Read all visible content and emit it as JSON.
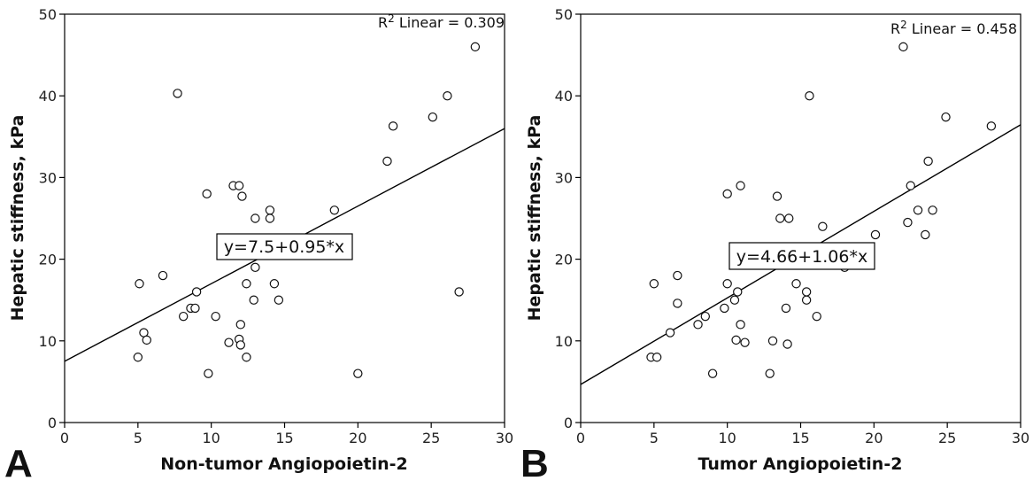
{
  "chart_data": [
    {
      "type": "scatter",
      "panel_label": "A",
      "xlabel": "Non-tumor Angiopoietin-2",
      "ylabel": "Hepatic stiffness, kPa",
      "xlim": [
        0,
        30
      ],
      "ylim": [
        0,
        50
      ],
      "x_ticks": [
        "0",
        "5",
        "10",
        "15",
        "20",
        "25",
        "30"
      ],
      "y_ticks": [
        "0",
        "10",
        "20",
        "30",
        "40",
        "50"
      ],
      "r2_prefix": "R",
      "r2_sup": "2",
      "r2_text": " Linear = 0.309",
      "equation": "y=7.5+0.95*x",
      "fit": {
        "intercept": 7.5,
        "slope": 0.95
      },
      "grid": false,
      "points": [
        {
          "x": 5.0,
          "y": 8.0
        },
        {
          "x": 5.1,
          "y": 17.0
        },
        {
          "x": 5.4,
          "y": 11.0
        },
        {
          "x": 5.6,
          "y": 10.1
        },
        {
          "x": 6.7,
          "y": 18.0
        },
        {
          "x": 7.7,
          "y": 40.3
        },
        {
          "x": 8.1,
          "y": 13.0
        },
        {
          "x": 8.6,
          "y": 14.0
        },
        {
          "x": 8.9,
          "y": 14.0
        },
        {
          "x": 9.0,
          "y": 16.0
        },
        {
          "x": 9.7,
          "y": 28.0
        },
        {
          "x": 9.8,
          "y": 6.0
        },
        {
          "x": 10.3,
          "y": 13.0
        },
        {
          "x": 11.2,
          "y": 9.8
        },
        {
          "x": 11.5,
          "y": 29.0
        },
        {
          "x": 11.9,
          "y": 29.0
        },
        {
          "x": 11.9,
          "y": 10.2
        },
        {
          "x": 12.0,
          "y": 12.0
        },
        {
          "x": 12.0,
          "y": 9.5
        },
        {
          "x": 12.1,
          "y": 27.7
        },
        {
          "x": 12.4,
          "y": 17.0
        },
        {
          "x": 12.4,
          "y": 8.0
        },
        {
          "x": 12.9,
          "y": 15.0
        },
        {
          "x": 13.0,
          "y": 19.0
        },
        {
          "x": 13.0,
          "y": 25.0
        },
        {
          "x": 14.0,
          "y": 26.0
        },
        {
          "x": 14.0,
          "y": 25.0
        },
        {
          "x": 14.3,
          "y": 17.0
        },
        {
          "x": 14.6,
          "y": 15.0
        },
        {
          "x": 18.4,
          "y": 26.0
        },
        {
          "x": 20.0,
          "y": 6.0
        },
        {
          "x": 22.0,
          "y": 32.0
        },
        {
          "x": 22.4,
          "y": 36.3
        },
        {
          "x": 25.1,
          "y": 37.4
        },
        {
          "x": 26.1,
          "y": 40.0
        },
        {
          "x": 26.9,
          "y": 16.0
        },
        {
          "x": 28.0,
          "y": 46.0
        }
      ]
    },
    {
      "type": "scatter",
      "panel_label": "B",
      "xlabel": "Tumor Angiopoietin-2",
      "ylabel": "Hepatic stiffness, kPa",
      "xlim": [
        0,
        30
      ],
      "ylim": [
        0,
        50
      ],
      "x_ticks": [
        "0",
        "5",
        "10",
        "15",
        "20",
        "25",
        "30"
      ],
      "y_ticks": [
        "0",
        "10",
        "20",
        "30",
        "40",
        "50"
      ],
      "r2_prefix": "R",
      "r2_sup": "2",
      "r2_text": " Linear = 0.458",
      "equation": "y=4.66+1.06*x",
      "fit": {
        "intercept": 4.66,
        "slope": 1.06
      },
      "grid": false,
      "points": [
        {
          "x": 4.8,
          "y": 8.0
        },
        {
          "x": 5.2,
          "y": 8.0
        },
        {
          "x": 5.0,
          "y": 17.0
        },
        {
          "x": 6.1,
          "y": 11.0
        },
        {
          "x": 6.6,
          "y": 18.0
        },
        {
          "x": 6.6,
          "y": 14.6
        },
        {
          "x": 8.0,
          "y": 12.0
        },
        {
          "x": 8.5,
          "y": 13.0
        },
        {
          "x": 9.0,
          "y": 6.0
        },
        {
          "x": 9.8,
          "y": 14.0
        },
        {
          "x": 10.0,
          "y": 28.0
        },
        {
          "x": 10.0,
          "y": 17.0
        },
        {
          "x": 10.5,
          "y": 15.0
        },
        {
          "x": 10.6,
          "y": 10.1
        },
        {
          "x": 10.7,
          "y": 16.0
        },
        {
          "x": 10.9,
          "y": 29.0
        },
        {
          "x": 10.9,
          "y": 12.0
        },
        {
          "x": 11.2,
          "y": 9.8
        },
        {
          "x": 12.9,
          "y": 6.0
        },
        {
          "x": 13.1,
          "y": 10.0
        },
        {
          "x": 13.4,
          "y": 27.7
        },
        {
          "x": 13.6,
          "y": 25.0
        },
        {
          "x": 14.0,
          "y": 14.0
        },
        {
          "x": 14.1,
          "y": 9.6
        },
        {
          "x": 14.2,
          "y": 25.0
        },
        {
          "x": 14.7,
          "y": 17.0
        },
        {
          "x": 15.4,
          "y": 16.0
        },
        {
          "x": 15.4,
          "y": 15.0
        },
        {
          "x": 15.6,
          "y": 40.0
        },
        {
          "x": 16.1,
          "y": 13.0
        },
        {
          "x": 16.5,
          "y": 24.0
        },
        {
          "x": 18.0,
          "y": 19.0
        },
        {
          "x": 20.1,
          "y": 23.0
        },
        {
          "x": 22.0,
          "y": 46.0
        },
        {
          "x": 22.3,
          "y": 24.5
        },
        {
          "x": 22.5,
          "y": 29.0
        },
        {
          "x": 23.0,
          "y": 26.0
        },
        {
          "x": 23.5,
          "y": 23.0
        },
        {
          "x": 23.7,
          "y": 32.0
        },
        {
          "x": 24.0,
          "y": 26.0
        },
        {
          "x": 24.9,
          "y": 37.4
        },
        {
          "x": 28.0,
          "y": 36.3
        }
      ]
    }
  ]
}
